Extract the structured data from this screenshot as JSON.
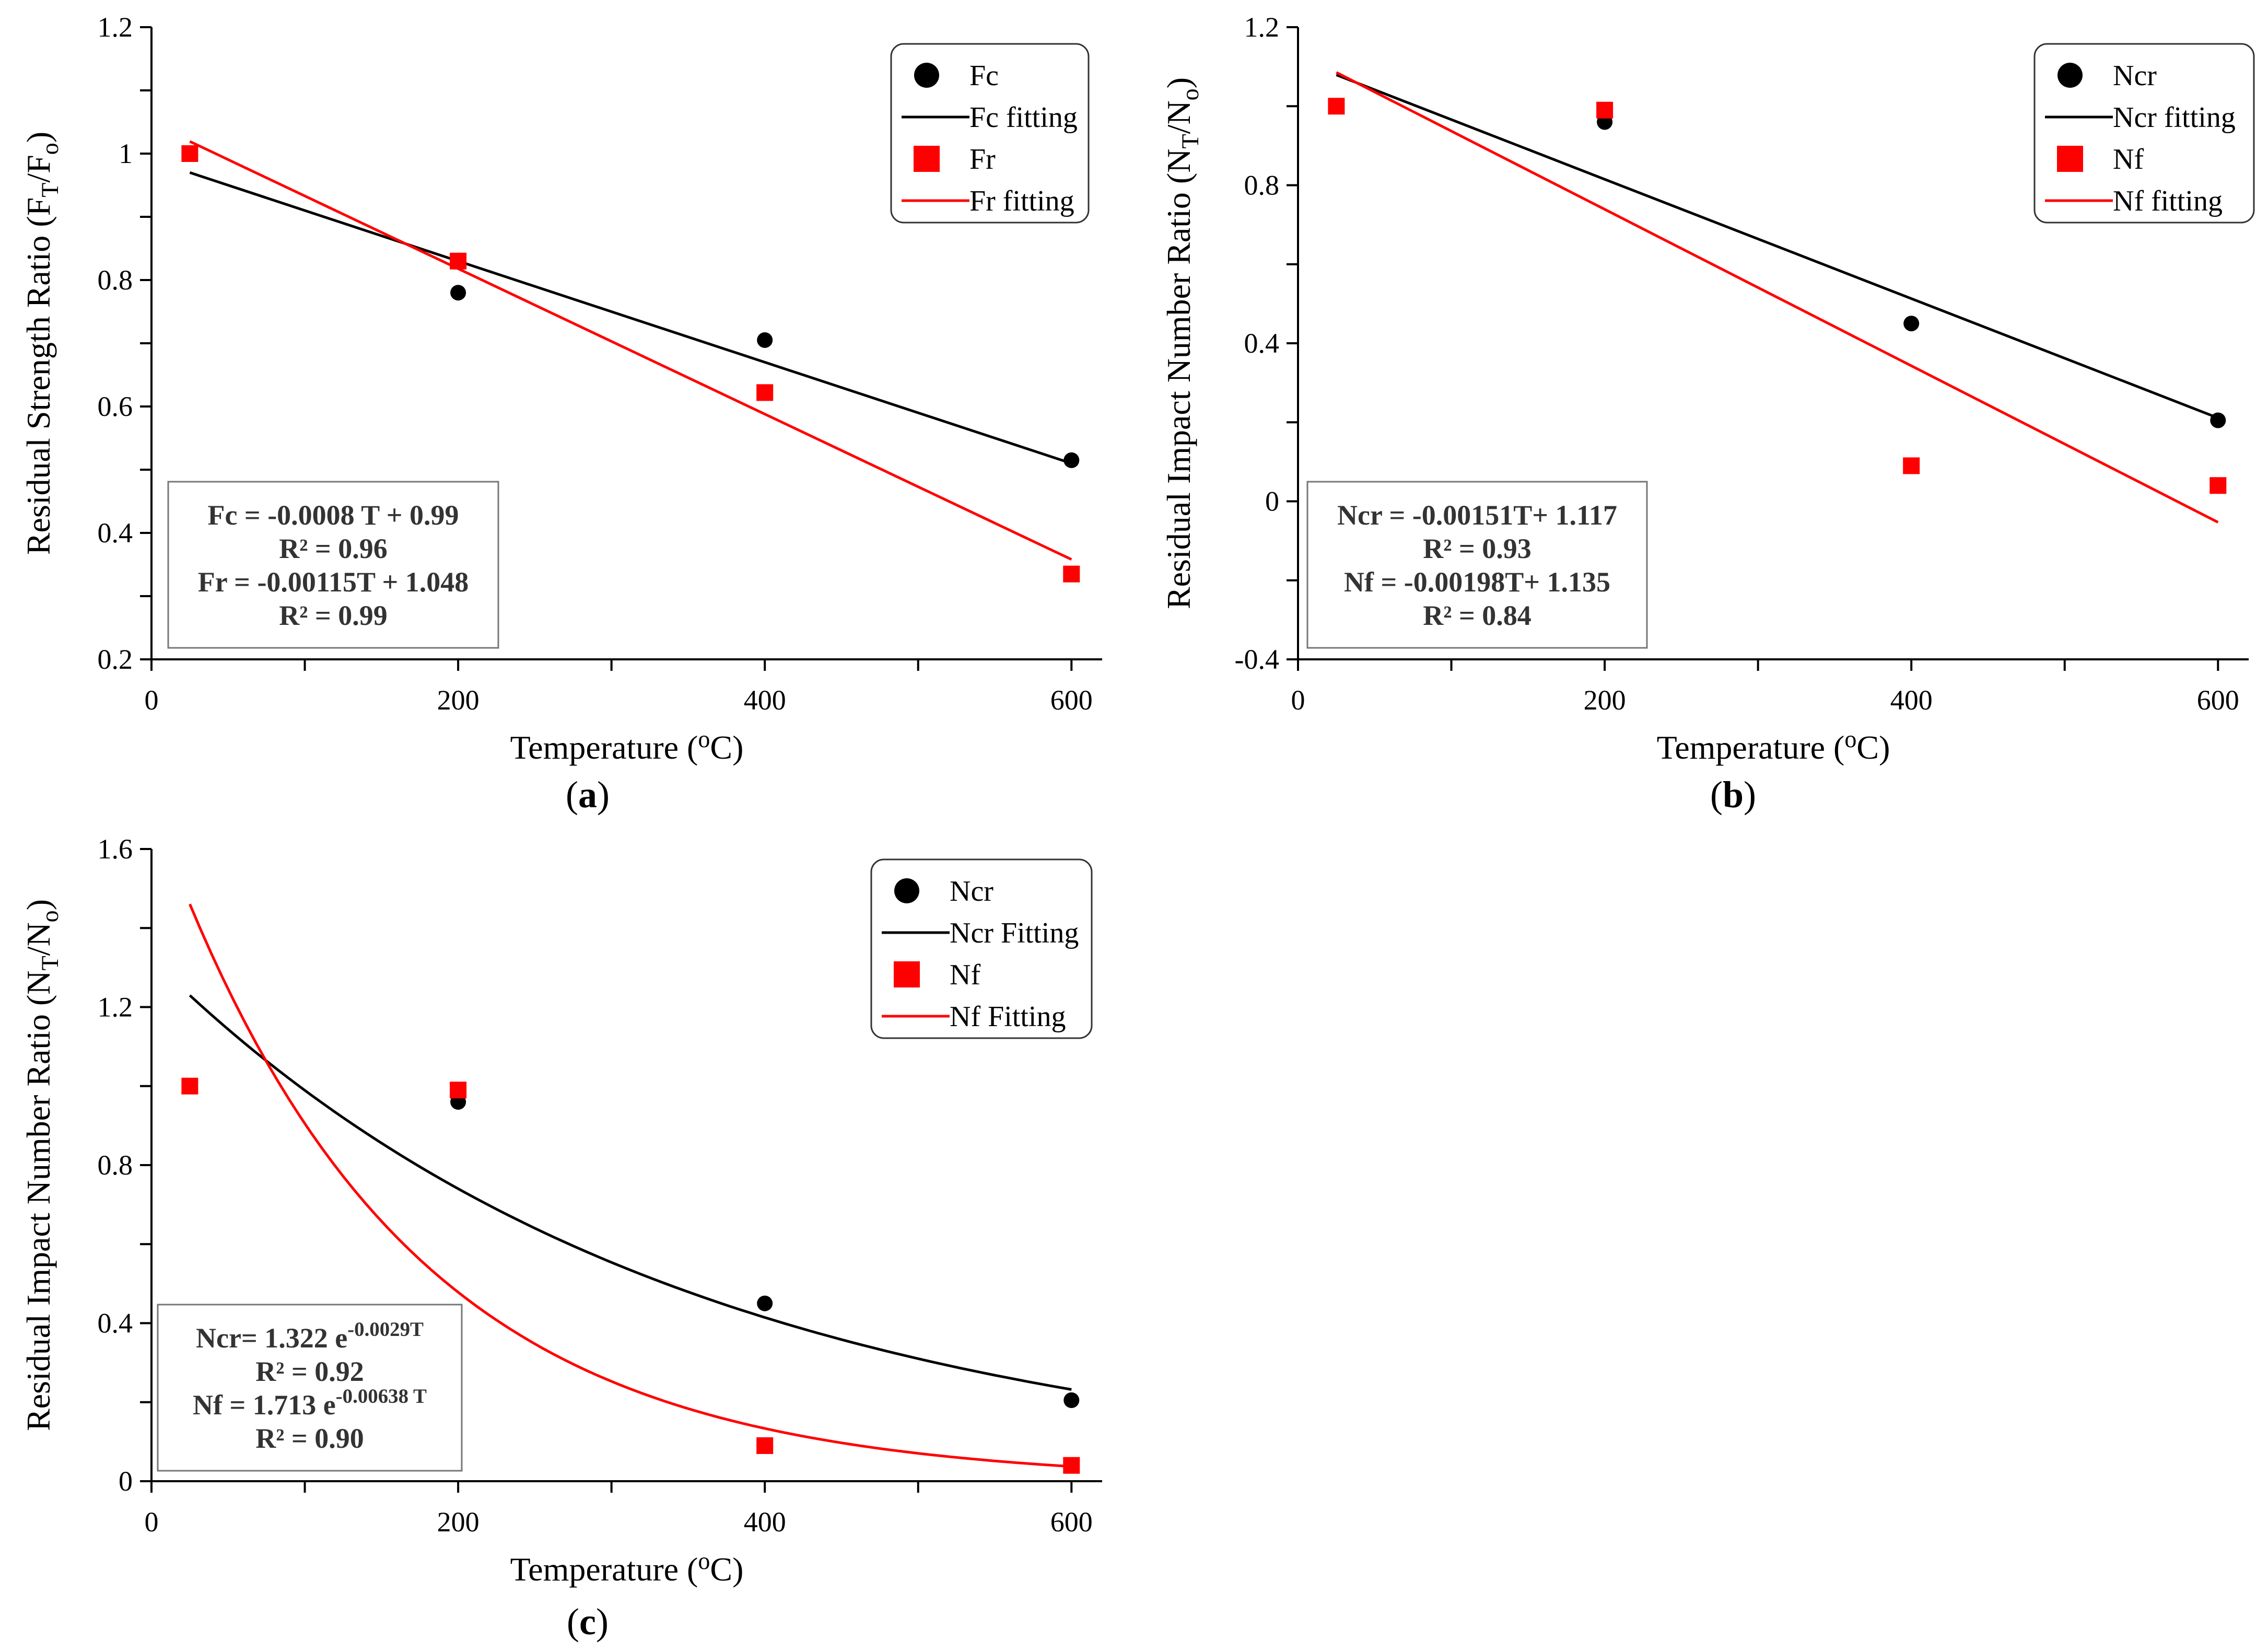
{
  "figure": {
    "panels": [
      {
        "id": "a",
        "panel_label": "(a)",
        "chart_data": {
          "type": "scatter",
          "xlabel": "Temperature (oC)",
          "ylabel": "Residual Strength Ratio (FT/Fo)",
          "xlim": [
            0,
            620
          ],
          "ylim": [
            0.2,
            1.2
          ],
          "x_ticks": [
            0,
            200,
            400,
            600
          ],
          "y_ticks": [
            0.2,
            0.4,
            0.6,
            0.8,
            1.0,
            1.2
          ],
          "y_tick_labels": [
            "0.2",
            "0.4",
            "0.6",
            "0.8",
            "1",
            "1.2"
          ],
          "series": [
            {
              "name": "Fc",
              "kind": "points",
              "marker": "circle",
              "color": "#000000",
              "x": [
                25,
                200,
                400,
                600
              ],
              "y": [
                1.0,
                0.78,
                0.705,
                0.515
              ]
            },
            {
              "name": "Fc fitting",
              "kind": "line",
              "color": "#000000",
              "fit": {
                "form": "linear",
                "a": -0.0008,
                "b": 0.99
              },
              "x_range": [
                25,
                600
              ]
            },
            {
              "name": "Fr",
              "kind": "points",
              "marker": "square",
              "color": "#ff0000",
              "x": [
                25,
                200,
                400,
                600
              ],
              "y": [
                1.0,
                0.83,
                0.622,
                0.335
              ]
            },
            {
              "name": "Fr fitting",
              "kind": "line",
              "color": "#ff0000",
              "fit": {
                "form": "linear",
                "a": -0.00115,
                "b": 1.048
              },
              "x_range": [
                25,
                600
              ]
            }
          ],
          "legend": {
            "position": "top-right",
            "entries": [
              "Fc",
              "Fc fitting",
              "Fr",
              "Fr fitting"
            ]
          },
          "equations": [
            "Fc = -0.0008 T + 0.99",
            "R² = 0.96",
            "Fr = -0.00115T + 1.048",
            "R² = 0.99"
          ],
          "equation_position": "bottom-left"
        }
      },
      {
        "id": "b",
        "panel_label": "(b)",
        "chart_data": {
          "type": "scatter",
          "xlabel": "Temperature (oC)",
          "ylabel": "Residual Impact Number Ratio (NT/No)",
          "xlim": [
            0,
            620
          ],
          "ylim": [
            -0.4,
            1.2
          ],
          "x_ticks": [
            0,
            200,
            400,
            600
          ],
          "y_ticks": [
            -0.4,
            0,
            0.4,
            0.8,
            1.2
          ],
          "y_tick_labels": [
            "-0.4",
            "0",
            "0.4",
            "0.8",
            "1.2"
          ],
          "series": [
            {
              "name": "Ncr",
              "kind": "points",
              "marker": "circle",
              "color": "#000000",
              "x": [
                25,
                200,
                400,
                600
              ],
              "y": [
                1.0,
                0.96,
                0.45,
                0.205
              ]
            },
            {
              "name": "Ncr fitting",
              "kind": "line",
              "color": "#000000",
              "fit": {
                "form": "linear",
                "a": -0.00151,
                "b": 1.117
              },
              "x_range": [
                25,
                600
              ]
            },
            {
              "name": "Nf",
              "kind": "points",
              "marker": "square",
              "color": "#ff0000",
              "x": [
                25,
                200,
                400,
                600
              ],
              "y": [
                1.0,
                0.99,
                0.09,
                0.04
              ]
            },
            {
              "name": "Nf fitting",
              "kind": "line",
              "color": "#ff0000",
              "fit": {
                "form": "linear",
                "a": -0.00198,
                "b": 1.135
              },
              "x_range": [
                25,
                600
              ]
            }
          ],
          "legend": {
            "position": "top-right",
            "entries": [
              "Ncr",
              "Ncr fitting",
              "Nf",
              "Nf fitting"
            ]
          },
          "equations": [
            "Ncr = -0.00151T+ 1.117",
            "R² = 0.93",
            "Nf = -0.00198T+ 1.135",
            "R² = 0.84"
          ],
          "equation_position": "bottom-left"
        }
      },
      {
        "id": "c",
        "panel_label": "(c)",
        "chart_data": {
          "type": "scatter",
          "xlabel": "Temperature (oC)",
          "ylabel": "Residual Impact Number Ratio (NT/No)",
          "xlim": [
            0,
            620
          ],
          "ylim": [
            0,
            1.6
          ],
          "x_ticks": [
            0,
            200,
            400,
            600
          ],
          "y_ticks": [
            0,
            0.4,
            0.8,
            1.2,
            1.6
          ],
          "y_tick_labels": [
            "0",
            "0.4",
            "0.8",
            "1.2",
            "1.6"
          ],
          "series": [
            {
              "name": "Ncr",
              "kind": "points",
              "marker": "circle",
              "color": "#000000",
              "x": [
                25,
                200,
                400,
                600
              ],
              "y": [
                1.0,
                0.96,
                0.45,
                0.205
              ]
            },
            {
              "name": "Ncr Fitting",
              "kind": "line",
              "color": "#000000",
              "fit": {
                "form": "exp",
                "a": 1.322,
                "k": -0.0029
              },
              "x_range": [
                25,
                600
              ]
            },
            {
              "name": "Nf",
              "kind": "points",
              "marker": "square",
              "color": "#ff0000",
              "x": [
                25,
                200,
                400,
                600
              ],
              "y": [
                1.0,
                0.99,
                0.09,
                0.04
              ]
            },
            {
              "name": "Nf Fitting",
              "kind": "line",
              "color": "#ff0000",
              "fit": {
                "form": "exp",
                "a": 1.713,
                "k": -0.00638
              },
              "x_range": [
                25,
                600
              ]
            }
          ],
          "legend": {
            "position": "top-right",
            "entries": [
              "Ncr",
              "Ncr Fitting",
              "Nf",
              "Nf Fitting"
            ]
          },
          "equations": [
            "Ncr= 1.322 e-0.0029T",
            "R² = 0.92",
            "Nf = 1.713 e-0.00638 T",
            "R² = 0.90"
          ],
          "equation_position": "bottom-left"
        }
      }
    ]
  }
}
